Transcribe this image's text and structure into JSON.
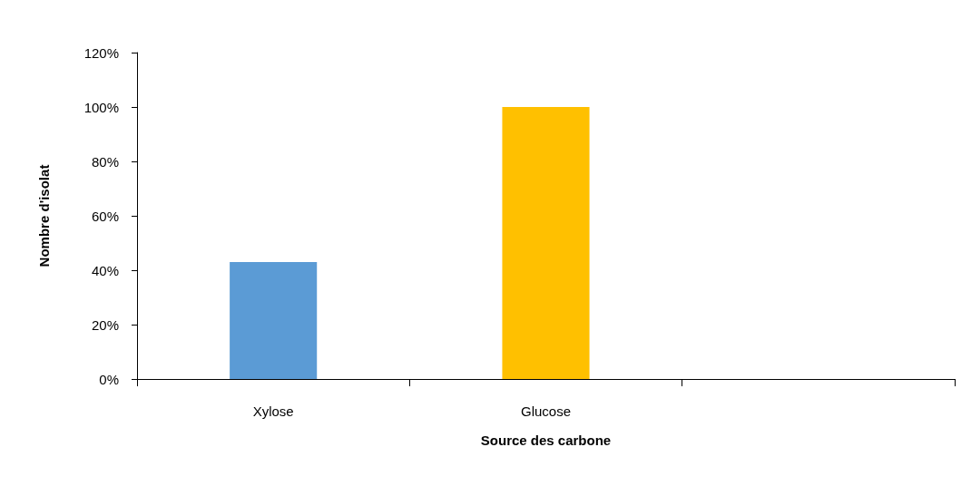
{
  "chart_data": {
    "type": "bar",
    "xlabel": "Source des carbone",
    "ylabel": "Nombre d'isolat",
    "categories": [
      "Xylose",
      "Glucose",
      null
    ],
    "values": [
      43,
      100,
      null
    ],
    "colors": [
      "#5b9bd5",
      "#ffc000",
      "#5b9bd5"
    ],
    "ylim": [
      0,
      120
    ],
    "yticks": [
      {
        "value": 0,
        "label": "0%"
      },
      {
        "value": 20,
        "label": "20%"
      },
      {
        "value": 40,
        "label": "40%"
      },
      {
        "value": 60,
        "label": "60%"
      },
      {
        "value": 80,
        "label": "80%"
      },
      {
        "value": 100,
        "label": "100%"
      },
      {
        "value": 120,
        "label": "120%"
      }
    ],
    "grid": false
  }
}
